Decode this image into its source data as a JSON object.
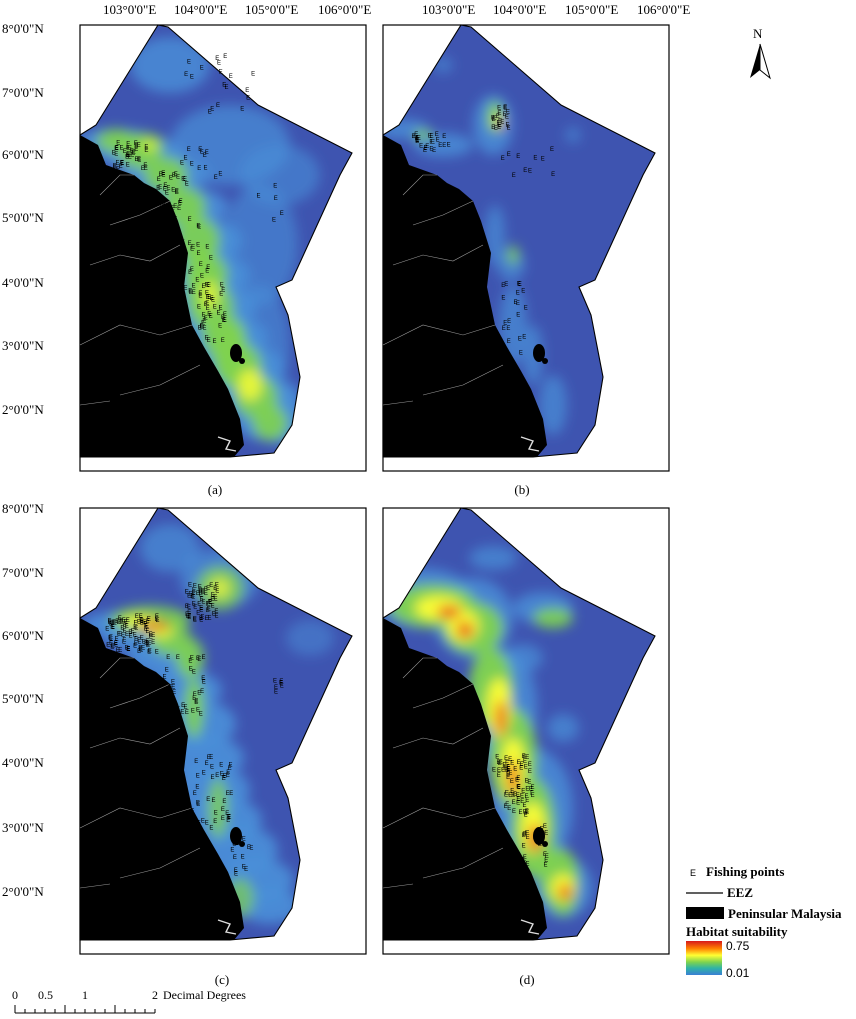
{
  "top_lon_ticks": [
    "103°0'0\"E",
    "104°0'0\"E",
    "105°0'0\"E",
    "106°0'0\"E"
  ],
  "lat_ticks": [
    "8°0'0\"N",
    "7°0'0\"N",
    "6°0'0\"N",
    "5°0'0\"N",
    "4°0'0\"N",
    "3°0'0\"N",
    "2°0'0\"N"
  ],
  "panels": [
    {
      "id": "a",
      "label": "(a)"
    },
    {
      "id": "b",
      "label": "(b)"
    },
    {
      "id": "c",
      "label": "(c)"
    },
    {
      "id": "d",
      "label": "(d)"
    }
  ],
  "north_arrow": {
    "letter": "N"
  },
  "legend": {
    "fishing_points": "Fishing points",
    "eez": "EEZ",
    "peninsular": "Peninsular Malaysia",
    "habitat_title": "Habitat suitability",
    "max": "0.75",
    "min": "0.01",
    "ramp_colors": [
      "#d7191c",
      "#ff7f00",
      "#ffff33",
      "#7fd34e",
      "#2fb3a6",
      "#3a7fd5"
    ]
  },
  "scale_bar": {
    "ticks": [
      "0",
      "0.5",
      "1",
      "2"
    ],
    "unit": "Decimal Degrees"
  },
  "colors": {
    "sea": "#3e54b0",
    "land": "#000000",
    "low": "#4a90d9",
    "mid": "#7fd34e",
    "high": "#ffff33",
    "peak": "#e8231c"
  },
  "marker_glyph": "E"
}
